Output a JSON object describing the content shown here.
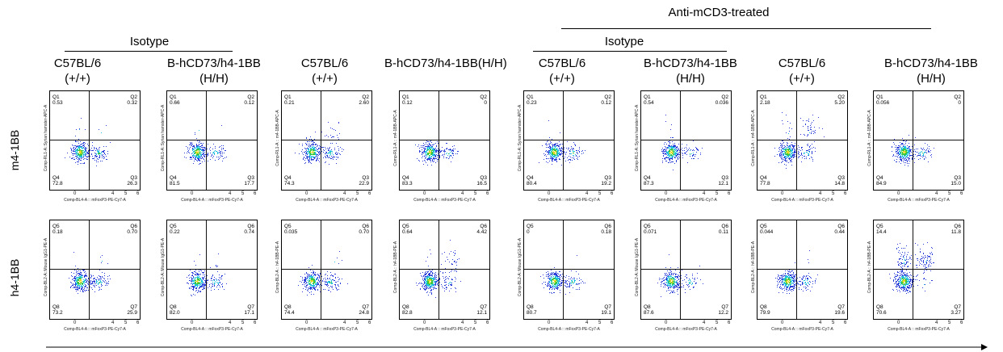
{
  "headers": {
    "top_group": "Anti-mCD3-treated",
    "isotype_1": "Isotype",
    "isotype_2": "Isotype",
    "columns": [
      {
        "name": "C57BL/6",
        "genotype": "(+/+)"
      },
      {
        "name": "B-hCD73/h4-1BB",
        "genotype": "(H/H)"
      },
      {
        "name": "C57BL/6",
        "genotype": "(+/+)"
      },
      {
        "name": "B-hCD73/h4-1BB(H/H)",
        "genotype": ""
      },
      {
        "name": "C57BL/6",
        "genotype": "(+/+)"
      },
      {
        "name": "B-hCD73/h4-1BB",
        "genotype": "(H/H)"
      },
      {
        "name": "C57BL/6",
        "genotype": "(+/+)"
      },
      {
        "name": "B-hCD73/h4-1BB",
        "genotype": "(H/H)"
      }
    ]
  },
  "rows": [
    {
      "label": "m4-1BB"
    },
    {
      "label": "h4-1BB"
    }
  ],
  "chart_data": {
    "type": "scatter",
    "subtype": "flow-cytometry-quadrant-plots",
    "x_ticks": [
      "0",
      "4",
      "5",
      "6"
    ],
    "panels": [
      {
        "row": 0,
        "col": 0,
        "ylabel": "Comp-RL1-A::Syrian hamster-APC-A",
        "xlabel": "Comp-BL4-A :: mFoxP3-PE-Cy7-A",
        "quadrants": [
          {
            "name": "Q1",
            "value": "0.53"
          },
          {
            "name": "Q2",
            "value": "0.32"
          },
          {
            "name": "Q4",
            "value": "72.8"
          },
          {
            "name": "Q3",
            "value": "26.3"
          }
        ]
      },
      {
        "row": 0,
        "col": 1,
        "ylabel": "Comp-RL1-A::Syrian hamster-APC-A",
        "xlabel": "Comp-BL4-A :: mFoxP3-PE-Cy7-A",
        "quadrants": [
          {
            "name": "Q1",
            "value": "0.66"
          },
          {
            "name": "Q2",
            "value": "0.12"
          },
          {
            "name": "Q4",
            "value": "81.5"
          },
          {
            "name": "Q3",
            "value": "17.7"
          }
        ]
      },
      {
        "row": 0,
        "col": 2,
        "ylabel": "Comp-RL1-A :: m4-1BB-APC-A",
        "xlabel": "Comp-BL4-A :: mFoxP3-PE-Cy7-A",
        "quadrants": [
          {
            "name": "Q1",
            "value": "0.21"
          },
          {
            "name": "Q2",
            "value": "2.60"
          },
          {
            "name": "Q4",
            "value": "74.3"
          },
          {
            "name": "Q3",
            "value": "22.9"
          }
        ]
      },
      {
        "row": 0,
        "col": 3,
        "ylabel": "Comp-RL1-A :: m4-1BB-APC-A",
        "xlabel": "Comp-BL4-A :: mFoxP3-PE-Cy7-A",
        "quadrants": [
          {
            "name": "Q1",
            "value": "0.12"
          },
          {
            "name": "Q2",
            "value": "0"
          },
          {
            "name": "Q4",
            "value": "83.3"
          },
          {
            "name": "Q3",
            "value": "16.5"
          }
        ]
      },
      {
        "row": 0,
        "col": 4,
        "ylabel": "Comp-RL1-A::Syrian hamster-APC-A",
        "xlabel": "Comp-BL4-A :: mFoxP3-PE-Cy7-A",
        "quadrants": [
          {
            "name": "Q1",
            "value": "0.23"
          },
          {
            "name": "Q2",
            "value": "0.12"
          },
          {
            "name": "Q4",
            "value": "80.4"
          },
          {
            "name": "Q3",
            "value": "19.2"
          }
        ]
      },
      {
        "row": 0,
        "col": 5,
        "ylabel": "Comp-RL1-A::Syrian hamster-APC-A",
        "xlabel": "Comp-BL4-A :: mFoxP3-PE-Cy7-A",
        "quadrants": [
          {
            "name": "Q1",
            "value": "0.54"
          },
          {
            "name": "Q2",
            "value": "0.036"
          },
          {
            "name": "Q4",
            "value": "87.3"
          },
          {
            "name": "Q3",
            "value": "12.1"
          }
        ]
      },
      {
        "row": 0,
        "col": 6,
        "ylabel": "Comp-RL1-A :: m4-1BB-APC-A",
        "xlabel": "Comp-BL4-A :: mFoxP3-PE-Cy7-A",
        "quadrants": [
          {
            "name": "Q1",
            "value": "2.18"
          },
          {
            "name": "Q2",
            "value": "5.20"
          },
          {
            "name": "Q4",
            "value": "77.8"
          },
          {
            "name": "Q3",
            "value": "14.8"
          }
        ]
      },
      {
        "row": 0,
        "col": 7,
        "ylabel": "Comp-RL1-A :: m4-1BB-APC-A",
        "xlabel": "Comp-BL4-A :: mFoxP3-PE-Cy7-A",
        "quadrants": [
          {
            "name": "Q1",
            "value": "0.056"
          },
          {
            "name": "Q2",
            "value": "0"
          },
          {
            "name": "Q4",
            "value": "84.9"
          },
          {
            "name": "Q3",
            "value": "15.0"
          }
        ]
      },
      {
        "row": 1,
        "col": 0,
        "ylabel": "Comp-BL2-A::Mouse IgG1-PE-A",
        "xlabel": "Comp-BL4-A :: mFoxP3-PE-Cy7-A",
        "quadrants": [
          {
            "name": "Q5",
            "value": "0.18"
          },
          {
            "name": "Q6",
            "value": "0.70"
          },
          {
            "name": "Q8",
            "value": "73.2"
          },
          {
            "name": "Q7",
            "value": "25.9"
          }
        ]
      },
      {
        "row": 1,
        "col": 1,
        "ylabel": "Comp-BL2-A::Mouse IgG1-PE-A",
        "xlabel": "Comp-BL4-A :: mFoxP3-PE-Cy7-A",
        "quadrants": [
          {
            "name": "Q5",
            "value": "0.22"
          },
          {
            "name": "Q6",
            "value": "0.74"
          },
          {
            "name": "Q8",
            "value": "82.0"
          },
          {
            "name": "Q7",
            "value": "17.1"
          }
        ]
      },
      {
        "row": 1,
        "col": 2,
        "ylabel": "Comp-BL2-A :: h4-1BB-PE-A",
        "xlabel": "Comp-BL4-A :: mFoxP3-PE-Cy7-A",
        "quadrants": [
          {
            "name": "Q5",
            "value": "0.035"
          },
          {
            "name": "Q6",
            "value": "0.70"
          },
          {
            "name": "Q8",
            "value": "74.4"
          },
          {
            "name": "Q7",
            "value": "24.8"
          }
        ]
      },
      {
        "row": 1,
        "col": 3,
        "ylabel": "Comp-BL2-A :: h4-1BB-PE-A",
        "xlabel": "Comp-BL4-A :: mFoxP3-PE-Cy7-A",
        "quadrants": [
          {
            "name": "Q5",
            "value": "0.64"
          },
          {
            "name": "Q6",
            "value": "4.42"
          },
          {
            "name": "Q8",
            "value": "82.8"
          },
          {
            "name": "Q7",
            "value": "12.1"
          }
        ]
      },
      {
        "row": 1,
        "col": 4,
        "ylabel": "Comp-BL2-A::Mouse IgG1-PE-A",
        "xlabel": "Comp-BL4-A :: mFoxP3-PE-Cy7-A",
        "quadrants": [
          {
            "name": "Q5",
            "value": "0"
          },
          {
            "name": "Q6",
            "value": "0.18"
          },
          {
            "name": "Q8",
            "value": "80.7"
          },
          {
            "name": "Q7",
            "value": "19.1"
          }
        ]
      },
      {
        "row": 1,
        "col": 5,
        "ylabel": "Comp-BL2-A::Mouse IgG1-PE-A",
        "xlabel": "Comp-BL4-A :: mFoxP3-PE-Cy7-A",
        "quadrants": [
          {
            "name": "Q5",
            "value": "0.071"
          },
          {
            "name": "Q6",
            "value": "0.11"
          },
          {
            "name": "Q8",
            "value": "87.6"
          },
          {
            "name": "Q7",
            "value": "12.2"
          }
        ]
      },
      {
        "row": 1,
        "col": 6,
        "ylabel": "Comp-BL2-A :: h4-1BB-PE-A",
        "xlabel": "Comp-BL4-A :: mFoxP3-PE-Cy7-A",
        "quadrants": [
          {
            "name": "Q5",
            "value": "0.044"
          },
          {
            "name": "Q6",
            "value": "0.44"
          },
          {
            "name": "Q8",
            "value": "79.9"
          },
          {
            "name": "Q7",
            "value": "19.6"
          }
        ]
      },
      {
        "row": 1,
        "col": 7,
        "ylabel": "Comp-BL2-A :: h4-1BB-PE-A",
        "xlabel": "Comp-BL4-A :: mFoxP3-PE-Cy7-A",
        "quadrants": [
          {
            "name": "Q5",
            "value": "14.4"
          },
          {
            "name": "Q6",
            "value": "11.8"
          },
          {
            "name": "Q8",
            "value": "70.6"
          },
          {
            "name": "Q7",
            "value": "3.27"
          }
        ]
      }
    ]
  },
  "colors": {
    "density_low": "#2b3dd8",
    "density_mid": "#20c0e0",
    "density_high": "#3cc83c",
    "density_peak": "#e8d820",
    "gate": "#111111"
  }
}
